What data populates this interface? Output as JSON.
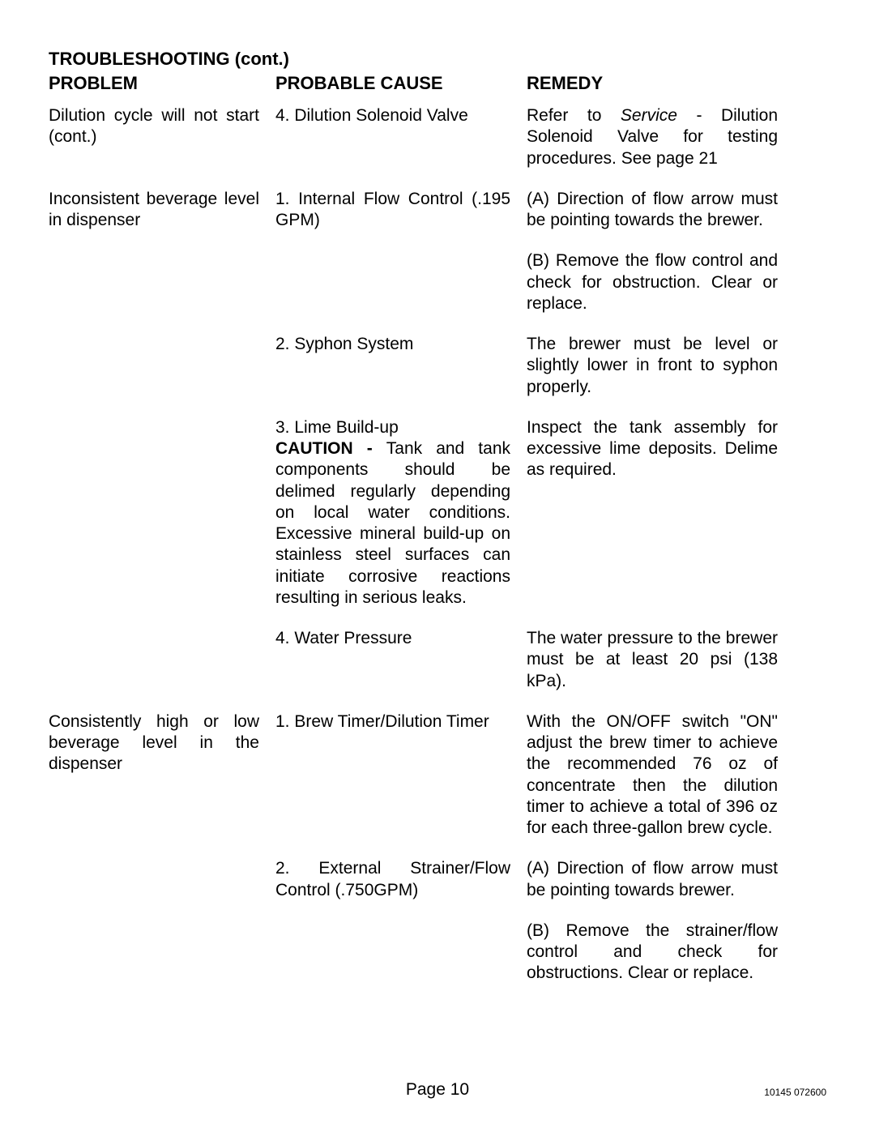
{
  "title": "TROUBLESHOOTING (cont.)",
  "headers": {
    "problem": "PROBLEM",
    "cause": "PROBABLE CAUSE",
    "remedy": "REMEDY"
  },
  "rows": [
    {
      "problem": "Dilution cycle will not start (cont.)",
      "cause": "4. Dilution Solenoid Valve",
      "remedy_prefix": "Refer to ",
      "remedy_italic": "Service",
      "remedy_suffix": " - Dilution Solenoid Valve for testing procedures. See page 21"
    },
    {
      "problem": "Inconsistent beverage level in dispenser",
      "cause": "1. Internal Flow Control (.195 GPM)",
      "remedy": "(A) Direction of flow arrow must be pointing towards the brewer."
    },
    {
      "problem": "",
      "cause": "",
      "remedy": "(B) Remove the flow control and check for obstruction. Clear or replace."
    },
    {
      "problem": "",
      "cause": "2. Syphon System",
      "remedy": "The brewer must be level or slightly lower in front to syphon properly."
    },
    {
      "problem": "",
      "cause_line1": "3. Lime Build-up",
      "cause_bold": "CAUTION - ",
      "cause_rest": "Tank and tank components should be delimed regularly depending on local water conditions. Excessive mineral build-up on stainless steel surfaces can initiate corrosive reactions resulting in serious leaks.",
      "remedy": "Inspect the tank assembly for excessive lime deposits. Delime as required."
    },
    {
      "problem": "",
      "cause": "4. Water Pressure",
      "remedy": "The water pressure to the brewer must be at least 20 psi (138 kPa)."
    },
    {
      "problem": "Consistently high or low beverage level in the dispenser",
      "cause": "1. Brew Timer/Dilution Timer",
      "remedy": "With the ON/OFF switch \"ON\" adjust the brew timer to achieve the recommended 76 oz of concentrate then the dilution timer to achieve a total of 396 oz for each three-gallon brew cycle."
    },
    {
      "problem": "",
      "cause": "2. External Strainer/Flow Control (.750GPM)",
      "remedy": "(A) Direction of flow arrow must be pointing towards brewer."
    },
    {
      "problem": "",
      "cause": "",
      "remedy": "(B) Remove the strainer/flow control and check for obstructions. Clear or replace."
    }
  ],
  "footer": {
    "page_label": "Page 10",
    "doc_id": "10145  072600"
  }
}
